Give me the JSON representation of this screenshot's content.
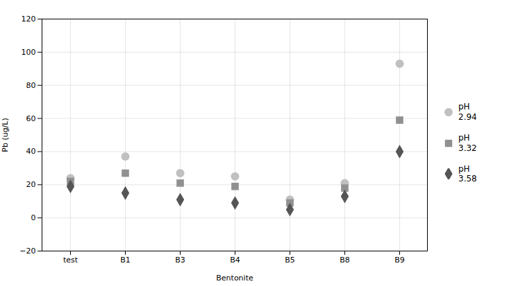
{
  "chart_data": {
    "type": "scatter",
    "categories": [
      "test",
      "B1",
      "B3",
      "B4",
      "B5",
      "B8",
      "B9"
    ],
    "series": [
      {
        "name": "pH\n2.94",
        "color": "#c0c0c0",
        "marker": "circle",
        "values": [
          24,
          37,
          27,
          25,
          11,
          21,
          93
        ]
      },
      {
        "name": "pH\n3.32",
        "color": "#909090",
        "marker": "square",
        "values": [
          22,
          27,
          21,
          19,
          9,
          18,
          59
        ]
      },
      {
        "name": "pH\n3.58",
        "color": "#555555",
        "marker": "diamond",
        "values": [
          19,
          15,
          11,
          9,
          5,
          13,
          40
        ]
      }
    ],
    "xlabel": "Bentonite",
    "ylabel": "Pb (ug/L)",
    "ylim": [
      -20,
      120
    ],
    "yticks": [
      -20,
      0,
      20,
      40,
      60,
      80,
      100,
      120
    ],
    "grid": true,
    "legend": "right"
  }
}
